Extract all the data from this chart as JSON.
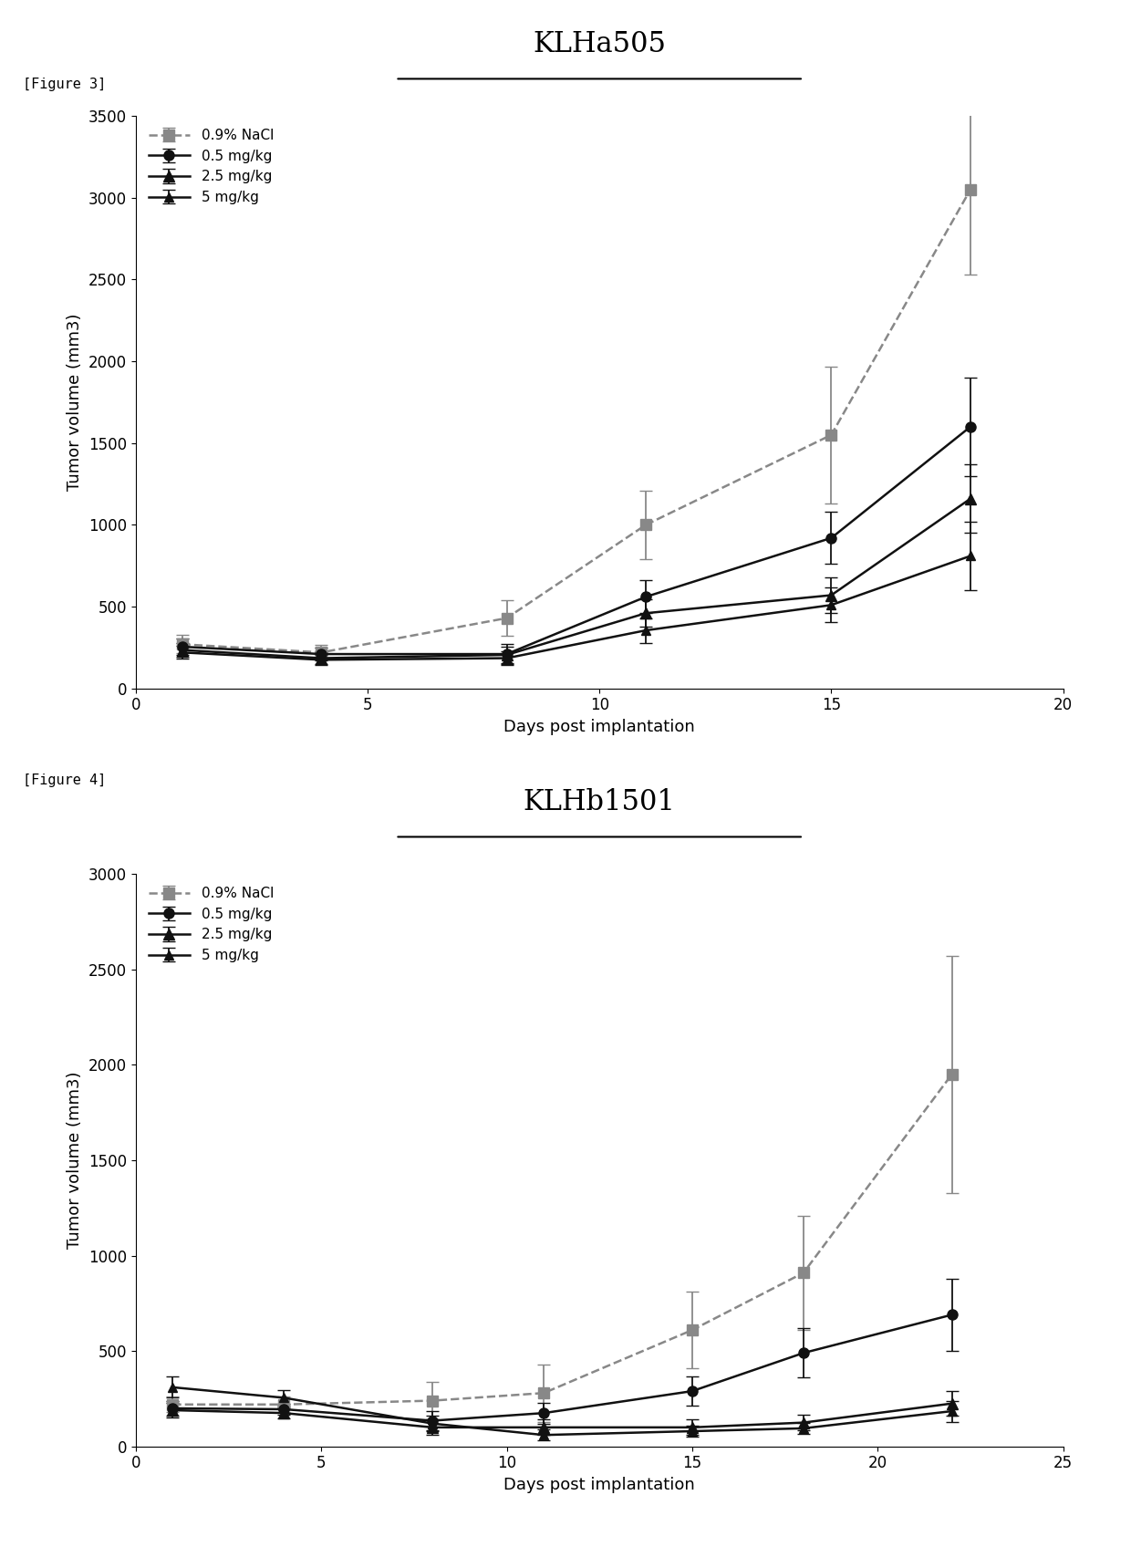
{
  "fig3": {
    "title": "KLHa505",
    "xlabel": "Days post implantation",
    "ylabel": "Tumor volume (mm3)",
    "ylim": [
      0,
      3500
    ],
    "xlim": [
      0,
      20
    ],
    "xticks": [
      0,
      5,
      10,
      15,
      20
    ],
    "yticks": [
      0,
      500,
      1000,
      1500,
      2000,
      2500,
      3000,
      3500
    ],
    "series": [
      {
        "label": "0.9% NaCl",
        "x": [
          1,
          4,
          8,
          11,
          15,
          18
        ],
        "y": [
          270,
          220,
          430,
          1000,
          1550,
          3050
        ],
        "yerr": [
          55,
          45,
          110,
          210,
          420,
          520
        ],
        "color": "#888888",
        "linestyle": "--",
        "marker": "s",
        "markersize": 8
      },
      {
        "label": "0.5 mg/kg",
        "x": [
          1,
          4,
          8,
          11,
          15,
          18
        ],
        "y": [
          255,
          210,
          210,
          560,
          920,
          1600
        ],
        "yerr": [
          50,
          40,
          60,
          100,
          160,
          300
        ],
        "color": "#111111",
        "linestyle": "-",
        "marker": "o",
        "markersize": 8
      },
      {
        "label": "2.5 mg/kg",
        "x": [
          1,
          4,
          8,
          11,
          15,
          18
        ],
        "y": [
          235,
          185,
          205,
          460,
          570,
          1160
        ],
        "yerr": [
          40,
          35,
          50,
          85,
          110,
          210
        ],
        "color": "#111111",
        "linestyle": "-",
        "marker": "^",
        "markersize": 8
      },
      {
        "label": "5 mg/kg",
        "x": [
          1,
          4,
          8,
          11,
          15,
          18
        ],
        "y": [
          220,
          175,
          185,
          355,
          510,
          810
        ],
        "yerr": [
          40,
          30,
          40,
          75,
          105,
          210
        ],
        "color": "#111111",
        "linestyle": "-",
        "marker": "^",
        "markersize": 7
      }
    ]
  },
  "fig4": {
    "title": "KLHb1501",
    "xlabel": "Days post implantation",
    "ylabel": "Tumor volume (mm3)",
    "ylim": [
      0,
      3000
    ],
    "xlim": [
      0,
      25
    ],
    "xticks": [
      0,
      5,
      10,
      15,
      20,
      25
    ],
    "yticks": [
      0,
      500,
      1000,
      1500,
      2000,
      2500,
      3000
    ],
    "series": [
      {
        "label": "0.9% NaCl",
        "x": [
          1,
          4,
          8,
          11,
          15,
          18,
          22
        ],
        "y": [
          220,
          220,
          240,
          280,
          610,
          910,
          1950
        ],
        "yerr": [
          40,
          40,
          100,
          150,
          200,
          300,
          620
        ],
        "color": "#888888",
        "linestyle": "--",
        "marker": "s",
        "markersize": 8
      },
      {
        "label": "0.5 mg/kg",
        "x": [
          1,
          4,
          8,
          11,
          15,
          18,
          22
        ],
        "y": [
          200,
          195,
          135,
          175,
          290,
          490,
          690
        ],
        "yerr": [
          40,
          30,
          50,
          55,
          75,
          130,
          190
        ],
        "color": "#111111",
        "linestyle": "-",
        "marker": "o",
        "markersize": 8
      },
      {
        "label": "2.5 mg/kg",
        "x": [
          1,
          4,
          8,
          11,
          15,
          18,
          22
        ],
        "y": [
          190,
          175,
          100,
          100,
          100,
          125,
          225
        ],
        "yerr": [
          40,
          30,
          40,
          40,
          40,
          40,
          65
        ],
        "color": "#111111",
        "linestyle": "-",
        "marker": "^",
        "markersize": 8
      },
      {
        "label": "5 mg/kg",
        "x": [
          1,
          4,
          8,
          11,
          15,
          18,
          22
        ],
        "y": [
          310,
          255,
          120,
          60,
          80,
          95,
          185
        ],
        "yerr": [
          55,
          40,
          40,
          30,
          30,
          30,
          55
        ],
        "color": "#111111",
        "linestyle": "-",
        "marker": "^",
        "markersize": 7
      }
    ]
  },
  "figure_label_fontsize": 11,
  "title_fontsize": 22,
  "axis_label_fontsize": 13,
  "tick_fontsize": 12,
  "legend_fontsize": 11,
  "bg_color": "#ffffff",
  "fig3_label": "[Figure 3]",
  "fig4_label": "[Figure 4]"
}
